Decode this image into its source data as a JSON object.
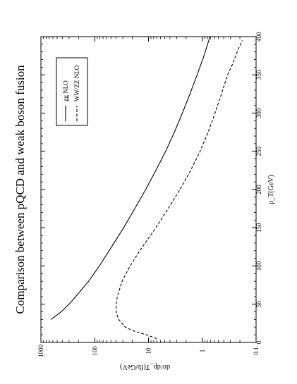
{
  "chart_data": {
    "type": "line",
    "title": "Comparison between pQCD and weak boson fusion",
    "xlabel": "p_T(GeV)",
    "ylabel": "dσ/dp_T(fb/GeV)",
    "xlim": [
      0,
      400
    ],
    "ylim": [
      0.1,
      1000
    ],
    "yscale": "log",
    "x_ticks": [
      "0",
      "50",
      "100",
      "150",
      "200",
      "250",
      "300",
      "350",
      "400"
    ],
    "y_ticks": [
      "0.1",
      "1",
      "10",
      "100",
      "1000"
    ],
    "grid": false,
    "legend_position": "top-left",
    "series": [
      {
        "name": "gg NLO",
        "style": "solid",
        "x": [
          30,
          40,
          50,
          60,
          80,
          100,
          120,
          150,
          175,
          200,
          225,
          250,
          275,
          300,
          325,
          350,
          375,
          400
        ],
        "y": [
          650,
          420,
          300,
          225,
          130,
          82,
          54,
          29,
          18,
          11.3,
          7.3,
          4.8,
          3.3,
          2.35,
          1.7,
          1.25,
          0.93,
          0.72
        ]
      },
      {
        "name": "WW/ZZ NLO",
        "style": "dashed",
        "x": [
          5,
          10,
          15,
          20,
          30,
          40,
          50,
          60,
          80,
          100,
          120,
          150,
          175,
          200,
          225,
          250,
          275,
          300,
          325,
          350,
          365,
          375,
          385,
          395
        ],
        "y": [
          7,
          11,
          19,
          27,
          36,
          40,
          40,
          38,
          31,
          22,
          14.5,
          7.3,
          4.3,
          2.6,
          1.65,
          1.1,
          0.78,
          0.58,
          0.44,
          0.34,
          0.27,
          0.24,
          0.21,
          0.18
        ]
      }
    ]
  }
}
